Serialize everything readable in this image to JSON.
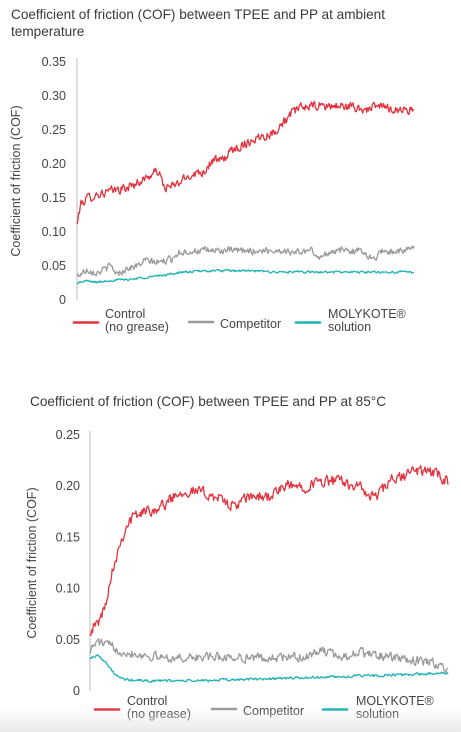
{
  "chart_data": [
    {
      "type": "line",
      "title": "Coefficient of friction (COF) between TPEE and PP at ambient temperature",
      "xlabel": "",
      "ylabel": "Coefficient of friction (COF)",
      "ylim": [
        0,
        0.35
      ],
      "y_ticks": [
        0,
        0.05,
        0.1,
        0.15,
        0.2,
        0.25,
        0.3,
        0.35
      ],
      "y_tick_labels": [
        "0",
        "0.05",
        "0.10",
        "0.15",
        "0.20",
        "0.25",
        "0.30",
        "0.35"
      ],
      "x_range": [
        0,
        100
      ],
      "grid": false,
      "legend_placement": "bottom",
      "series": [
        {
          "name": "Control (no grease)",
          "legend_lines": [
            "Control",
            "(no grease)"
          ],
          "color": "#e5323e",
          "noise": 0.006,
          "x": [
            0,
            1,
            3,
            6,
            10,
            15,
            20,
            24,
            26,
            29,
            34,
            38,
            40,
            43,
            46,
            50,
            54,
            58,
            62,
            65,
            68,
            72,
            76,
            80,
            85,
            90,
            95,
            100
          ],
          "values": [
            0.11,
            0.14,
            0.15,
            0.155,
            0.16,
            0.165,
            0.178,
            0.19,
            0.165,
            0.168,
            0.185,
            0.19,
            0.205,
            0.205,
            0.22,
            0.23,
            0.24,
            0.245,
            0.265,
            0.28,
            0.285,
            0.285,
            0.285,
            0.285,
            0.28,
            0.285,
            0.28,
            0.28
          ]
        },
        {
          "name": "Competitor",
          "legend_lines": [
            "Competitor"
          ],
          "color": "#9a9a9a",
          "noise": 0.0045,
          "x": [
            0,
            3,
            6,
            10,
            12,
            15,
            18,
            20,
            24,
            28,
            30,
            35,
            40,
            50,
            60,
            65,
            70,
            72,
            75,
            80,
            85,
            88,
            90,
            95,
            100
          ],
          "values": [
            0.035,
            0.045,
            0.04,
            0.05,
            0.038,
            0.047,
            0.05,
            0.058,
            0.055,
            0.06,
            0.07,
            0.072,
            0.073,
            0.072,
            0.073,
            0.07,
            0.073,
            0.06,
            0.072,
            0.073,
            0.072,
            0.058,
            0.072,
            0.072,
            0.075
          ]
        },
        {
          "name": "MOLYKOTE® solution",
          "legend_lines": [
            "MOLYKOTE®",
            "solution"
          ],
          "color": "#1fb2b4",
          "noise": 0.0015,
          "x": [
            0,
            3,
            6,
            10,
            15,
            20,
            25,
            30,
            35,
            40,
            50,
            60,
            70,
            80,
            90,
            100
          ],
          "values": [
            0.025,
            0.028,
            0.026,
            0.029,
            0.03,
            0.033,
            0.036,
            0.04,
            0.042,
            0.043,
            0.043,
            0.041,
            0.041,
            0.041,
            0.041,
            0.041
          ]
        }
      ]
    },
    {
      "type": "line",
      "title": "Coefficient of friction (COF) between TPEE and PP at 85°C",
      "xlabel": "",
      "ylabel": "Coefficient of friction (COF)",
      "ylim": [
        0,
        0.25
      ],
      "y_ticks": [
        0,
        0.05,
        0.1,
        0.15,
        0.2,
        0.25
      ],
      "y_tick_labels": [
        "0",
        "0.05",
        "0.10",
        "0.15",
        "0.20",
        "0.25"
      ],
      "x_range": [
        0,
        100
      ],
      "grid": false,
      "legend_placement": "bottom",
      "series": [
        {
          "name": "Control (no grease)",
          "legend_lines": [
            "Control",
            "(no grease)"
          ],
          "color": "#e5323e",
          "noise": 0.005,
          "x": [
            0,
            2,
            4,
            6,
            8,
            10,
            12,
            15,
            20,
            25,
            30,
            35,
            40,
            45,
            50,
            55,
            60,
            65,
            70,
            75,
            78,
            80,
            84,
            88,
            90,
            95,
            100
          ],
          "values": [
            0.06,
            0.065,
            0.08,
            0.115,
            0.14,
            0.16,
            0.17,
            0.175,
            0.18,
            0.195,
            0.195,
            0.19,
            0.18,
            0.19,
            0.19,
            0.2,
            0.2,
            0.205,
            0.205,
            0.2,
            0.19,
            0.19,
            0.205,
            0.21,
            0.215,
            0.215,
            0.205
          ]
        },
        {
          "name": "Competitor",
          "legend_lines": [
            "Competitor"
          ],
          "color": "#9a9a9a",
          "noise": 0.004,
          "x": [
            0,
            2,
            5,
            8,
            10,
            15,
            20,
            25,
            30,
            40,
            50,
            55,
            60,
            65,
            68,
            70,
            75,
            80,
            85,
            90,
            95,
            100
          ],
          "values": [
            0.04,
            0.048,
            0.045,
            0.04,
            0.038,
            0.035,
            0.033,
            0.032,
            0.033,
            0.033,
            0.032,
            0.033,
            0.033,
            0.04,
            0.035,
            0.033,
            0.038,
            0.035,
            0.032,
            0.03,
            0.028,
            0.022
          ]
        },
        {
          "name": "MOLYKOTE® solution",
          "legend_lines": [
            "MOLYKOTE®",
            "solution"
          ],
          "color": "#1fb2b4",
          "noise": 0.0012,
          "x": [
            0,
            2,
            4,
            6,
            8,
            10,
            15,
            20,
            30,
            40,
            50,
            60,
            70,
            80,
            90,
            95,
            100
          ],
          "values": [
            0.032,
            0.035,
            0.03,
            0.02,
            0.013,
            0.011,
            0.01,
            0.01,
            0.01,
            0.011,
            0.012,
            0.013,
            0.014,
            0.015,
            0.016,
            0.017,
            0.018
          ]
        }
      ]
    }
  ]
}
